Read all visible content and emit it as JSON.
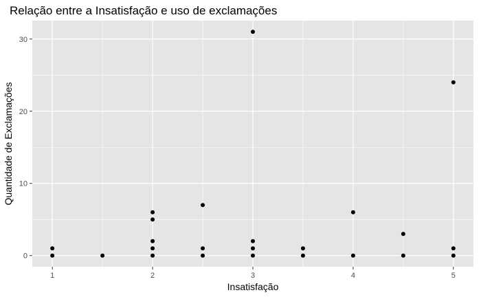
{
  "chart_data": {
    "type": "scatter",
    "title": "Relação entre a Insatisfação e uso de exclamações",
    "xlabel": "Insatisfação",
    "ylabel": "Quantidade de Exclamações",
    "xlim": [
      0.8,
      5.2
    ],
    "ylim": [
      -1.55,
      32.55
    ],
    "x_ticks": [
      1,
      2,
      3,
      4,
      5
    ],
    "y_ticks": [
      0,
      10,
      20,
      30
    ],
    "x_tick_labels": [
      "1",
      "2",
      "3",
      "4",
      "5"
    ],
    "y_tick_labels": [
      "0",
      "10",
      "20",
      "30"
    ],
    "grid": true,
    "panel_background": "#e5e5e5",
    "grid_major_color": "#ffffff",
    "point_color": "#000000",
    "points": [
      {
        "x": 1,
        "y": 0
      },
      {
        "x": 1,
        "y": 1
      },
      {
        "x": 1.5,
        "y": 0
      },
      {
        "x": 2,
        "y": 0
      },
      {
        "x": 2,
        "y": 1
      },
      {
        "x": 2,
        "y": 2
      },
      {
        "x": 2,
        "y": 5
      },
      {
        "x": 2,
        "y": 6
      },
      {
        "x": 2.5,
        "y": 0
      },
      {
        "x": 2.5,
        "y": 1
      },
      {
        "x": 2.5,
        "y": 7
      },
      {
        "x": 3,
        "y": 0
      },
      {
        "x": 3,
        "y": 1
      },
      {
        "x": 3,
        "y": 2
      },
      {
        "x": 3,
        "y": 31
      },
      {
        "x": 3.5,
        "y": 0
      },
      {
        "x": 3.5,
        "y": 1
      },
      {
        "x": 4,
        "y": 0
      },
      {
        "x": 4,
        "y": 6
      },
      {
        "x": 4.5,
        "y": 0
      },
      {
        "x": 4.5,
        "y": 3
      },
      {
        "x": 5,
        "y": 0
      },
      {
        "x": 5,
        "y": 1
      },
      {
        "x": 5,
        "y": 24
      }
    ]
  }
}
